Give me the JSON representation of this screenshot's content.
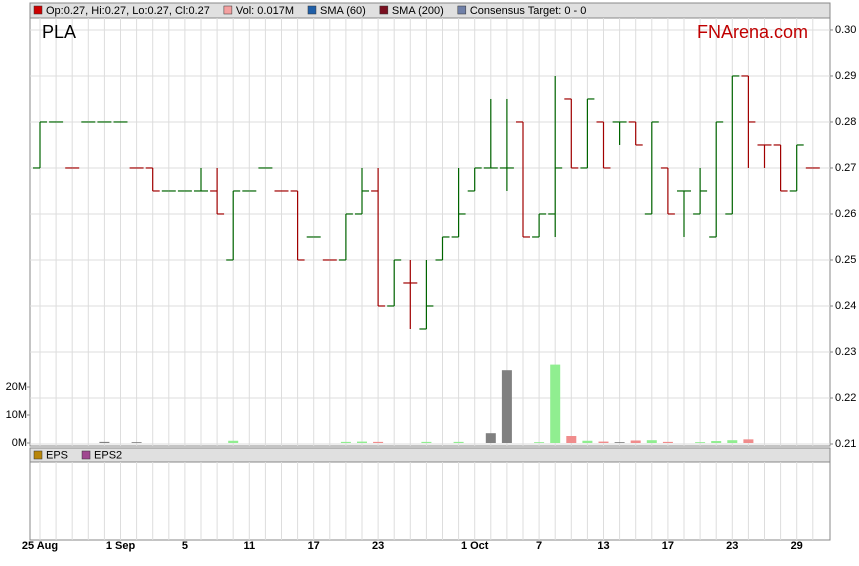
{
  "chart_data": {
    "type": "ohlc",
    "symbol": "PLA",
    "brand": "FNArena.com",
    "legend": [
      {
        "label": "Op:0.27, Hi:0.27, Lo:0.27, Cl:0.27",
        "color": "#cc0000"
      },
      {
        "label": "Vol: 0.017M",
        "color": "#f4a0a0"
      },
      {
        "label": "SMA (60)",
        "color": "#1f5fa8"
      },
      {
        "label": "SMA (200)",
        "color": "#7a1020"
      },
      {
        "label": "Consensus Target: 0 - 0",
        "color": "#7080a8"
      }
    ],
    "lower_legend": [
      {
        "label": "EPS",
        "color": "#b8860b"
      },
      {
        "label": "EPS2",
        "color": "#a04890"
      }
    ],
    "categories": [
      "25 Aug",
      null,
      null,
      null,
      null,
      "1 Sep",
      null,
      null,
      null,
      "5",
      null,
      null,
      null,
      "11",
      null,
      null,
      null,
      "17",
      null,
      null,
      null,
      "23",
      null,
      null,
      null,
      null,
      null,
      "1 Oct",
      null,
      null,
      null,
      "7",
      null,
      null,
      null,
      "13",
      null,
      null,
      null,
      "17",
      null,
      null,
      null,
      "23",
      null,
      null,
      null,
      "29",
      null
    ],
    "open": [
      0.27,
      0.28,
      0.27,
      0.28,
      0.28,
      0.28,
      0.27,
      0.27,
      0.265,
      0.265,
      0.265,
      0.265,
      0.25,
      0.265,
      0.27,
      0.265,
      0.265,
      0.255,
      0.25,
      0.25,
      0.26,
      0.265,
      0.24,
      0.245,
      0.235,
      0.25,
      0.255,
      0.265,
      0.27,
      0.27,
      0.28,
      0.255,
      0.26,
      0.285,
      0.27,
      0.28,
      0.28,
      0.28,
      0.26,
      0.27,
      0.265,
      0.26,
      0.255,
      0.26,
      0.29,
      0.275,
      0.275,
      0.265,
      0.27
    ],
    "high": [
      0.28,
      0.28,
      0.27,
      0.28,
      0.28,
      0.28,
      0.27,
      0.27,
      0.265,
      0.265,
      0.27,
      0.27,
      0.265,
      0.265,
      0.27,
      0.265,
      0.265,
      0.255,
      0.25,
      0.26,
      0.27,
      0.27,
      0.25,
      0.25,
      0.25,
      0.255,
      0.27,
      0.27,
      0.285,
      0.285,
      0.28,
      0.26,
      0.29,
      0.285,
      0.285,
      0.28,
      0.28,
      0.28,
      0.28,
      0.27,
      0.265,
      0.27,
      0.28,
      0.29,
      0.29,
      0.275,
      0.275,
      0.275,
      0.27
    ],
    "low": [
      0.27,
      0.28,
      0.27,
      0.28,
      0.28,
      0.28,
      0.27,
      0.265,
      0.265,
      0.265,
      0.265,
      0.26,
      0.25,
      0.265,
      0.27,
      0.265,
      0.25,
      0.255,
      0.25,
      0.25,
      0.26,
      0.24,
      0.24,
      0.235,
      0.235,
      0.25,
      0.255,
      0.265,
      0.27,
      0.265,
      0.255,
      0.255,
      0.255,
      0.27,
      0.27,
      0.27,
      0.275,
      0.275,
      0.26,
      0.26,
      0.255,
      0.26,
      0.255,
      0.26,
      0.27,
      0.27,
      0.265,
      0.265,
      0.27
    ],
    "close": [
      0.28,
      0.28,
      0.27,
      0.28,
      0.28,
      0.28,
      0.27,
      0.265,
      0.265,
      0.265,
      0.265,
      0.26,
      0.265,
      0.265,
      0.27,
      0.265,
      0.25,
      0.255,
      0.25,
      0.26,
      0.265,
      0.24,
      0.25,
      0.245,
      0.24,
      0.255,
      0.26,
      0.27,
      0.27,
      0.27,
      0.255,
      0.26,
      0.27,
      0.27,
      0.285,
      0.27,
      0.28,
      0.275,
      0.28,
      0.26,
      0.265,
      0.265,
      0.28,
      0.29,
      0.28,
      0.275,
      0.265,
      0.275,
      0.27
    ],
    "volume": [
      0,
      0,
      0,
      0,
      0.4,
      0,
      0.3,
      0,
      0,
      0,
      0,
      0,
      0.8,
      0,
      0,
      0,
      0,
      0,
      0,
      0.4,
      0.5,
      0.4,
      0,
      0,
      0.4,
      0,
      0.4,
      0,
      3.5,
      26,
      0,
      0.3,
      28,
      2.5,
      0.8,
      0.5,
      0.3,
      0.9,
      1,
      0.4,
      0,
      0.3,
      0.7,
      1,
      1.3,
      0,
      0,
      0,
      0
    ],
    "up_color": "#006400",
    "down_color": "#a00000",
    "volume_up_color": "#90ee90",
    "volume_down_color": "#f08c8c",
    "volume_flat_color": "#808080",
    "ylim": [
      0.21,
      0.3026
    ],
    "yticks": [
      0.21,
      0.22,
      0.23,
      0.24,
      0.25,
      0.26,
      0.27,
      0.28,
      0.29,
      {
        "value": 0.3,
        "label": "0.30"
      }
    ],
    "volume_ylim": [
      0,
      40
    ],
    "volume_yticks": [
      {
        "value": 0,
        "label": "0M"
      },
      {
        "value": 10,
        "label": "10M"
      },
      {
        "value": 20,
        "label": "20M"
      }
    ],
    "grid": true
  }
}
